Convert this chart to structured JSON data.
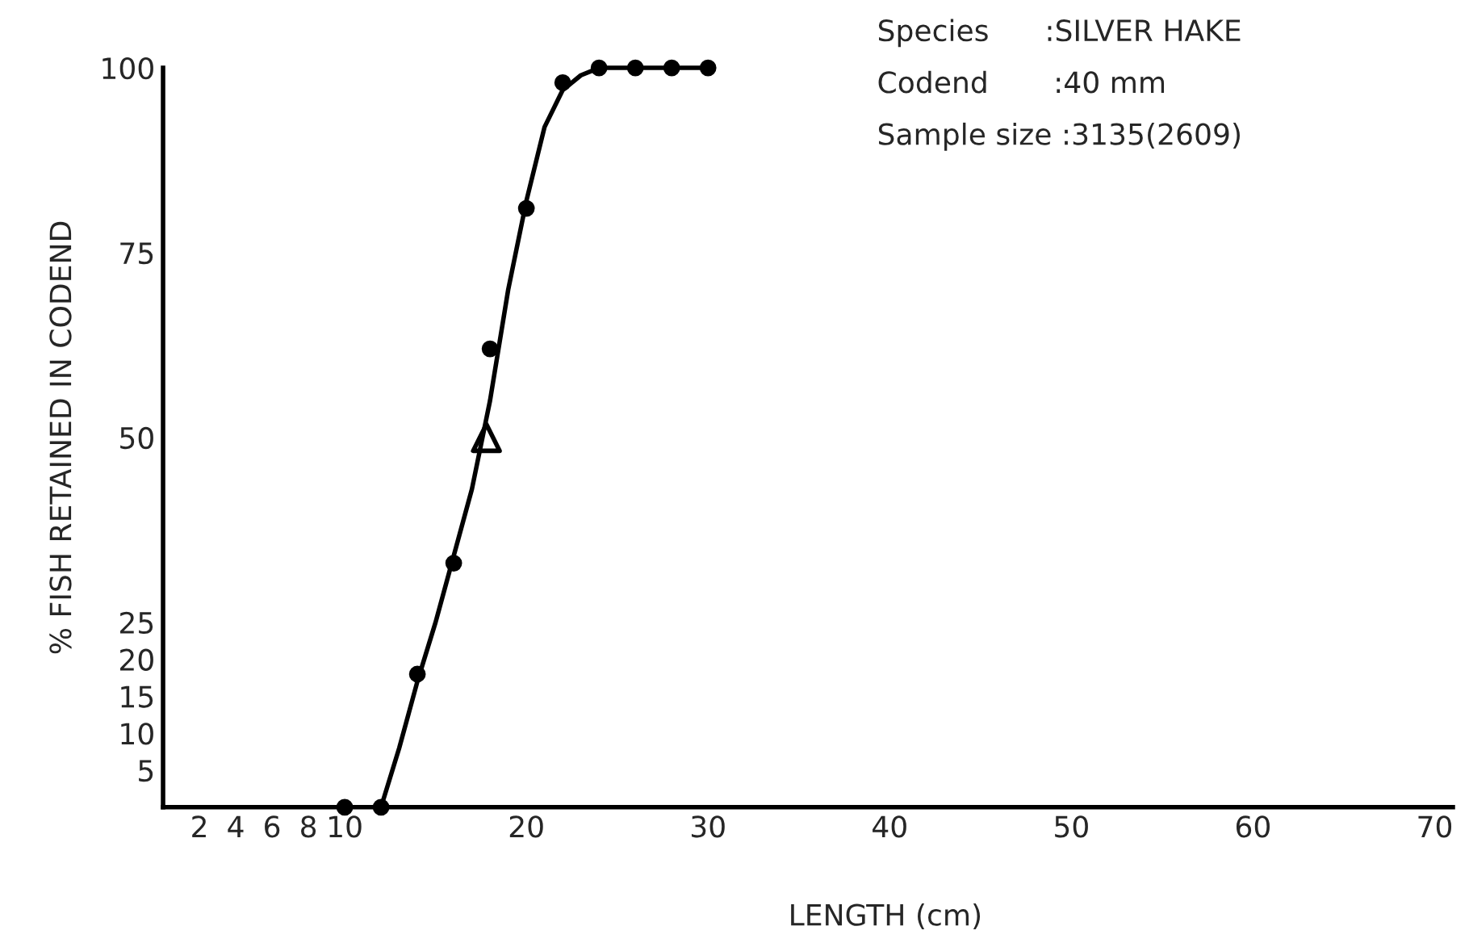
{
  "chart_data": {
    "type": "scatter",
    "xlabel": "LENGTH (cm)",
    "ylabel": "% FISH RETAINED IN CODEND",
    "annotations": [
      "Species      :SILVER HAKE",
      "Codend       :40 mm",
      "Sample size :3135(2609)"
    ],
    "xlim": [
      0,
      71
    ],
    "ylim": [
      0,
      100
    ],
    "xticks": [
      2,
      4,
      6,
      8,
      10,
      20,
      30,
      40,
      50,
      60,
      70
    ],
    "yticks": [
      5,
      10,
      15,
      20,
      25,
      50,
      75,
      100
    ],
    "grid": false,
    "series": [
      {
        "type": "line",
        "color": "#000000",
        "marker": "none",
        "line_style": "solid",
        "x": [
          12,
          13,
          14,
          15,
          16,
          17,
          18,
          19,
          20,
          21,
          22,
          23,
          24,
          30
        ],
        "values": [
          0,
          8,
          17,
          25,
          34,
          43,
          55,
          70,
          82,
          92,
          97,
          99,
          100,
          100
        ]
      },
      {
        "color": "#000000",
        "marker": "circle",
        "x": [
          10,
          12,
          14,
          16,
          18,
          20,
          22,
          24,
          26,
          28,
          30
        ],
        "values": [
          0,
          0,
          18,
          33,
          62,
          81,
          98,
          100,
          100,
          100,
          100
        ]
      },
      {
        "color": "#000000",
        "marker": "triangle",
        "x": [
          17.8
        ],
        "values": [
          50
        ]
      }
    ]
  }
}
